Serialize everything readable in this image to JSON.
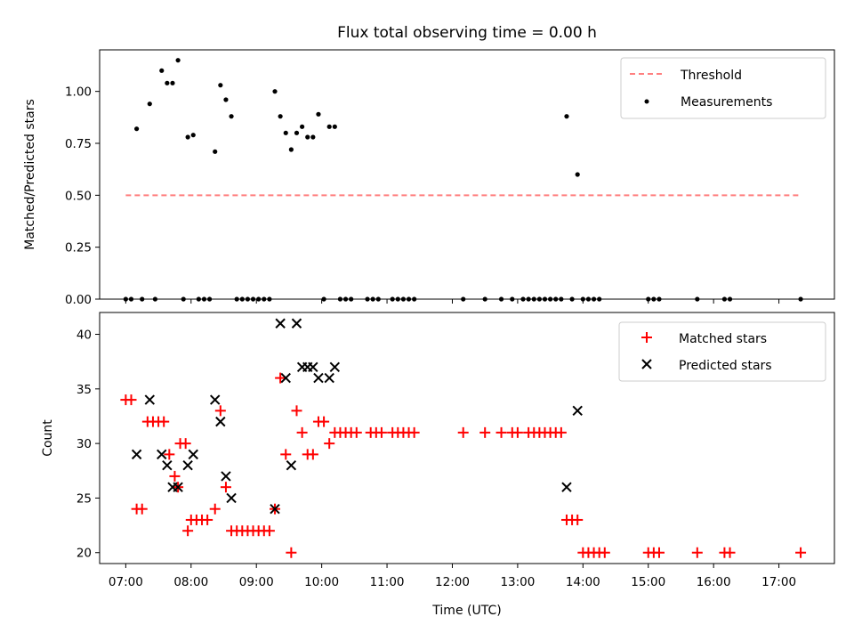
{
  "chart_data": [
    {
      "type": "scatter",
      "title": "Flux total observing time = 0.00 h",
      "xlabel": "",
      "ylabel": "Matched/Predicted stars",
      "ylim": [
        0,
        1.2
      ],
      "yticks": [
        "0.00",
        "0.25",
        "0.50",
        "0.75",
        "1.00"
      ],
      "xlim_hours": [
        6.6,
        17.85
      ],
      "legend": {
        "position": "top-right",
        "entries": [
          "Threshold",
          "Measurements"
        ]
      },
      "threshold": {
        "name": "Threshold",
        "y": 0.5,
        "x_range": [
          "07:00",
          "17:20"
        ],
        "color": "#ff7f7f"
      },
      "series": [
        {
          "name": "Measurements",
          "color": "#000000",
          "points": [
            [
              "07:00",
              0
            ],
            [
              "07:05",
              0
            ],
            [
              "07:10",
              0.82
            ],
            [
              "07:15",
              0
            ],
            [
              "07:22",
              0.94
            ],
            [
              "07:27",
              0
            ],
            [
              "07:33",
              1.1
            ],
            [
              "07:38",
              1.04
            ],
            [
              "07:43",
              1.04
            ],
            [
              "07:48",
              1.15
            ],
            [
              "07:53",
              0
            ],
            [
              "07:57",
              0.78
            ],
            [
              "08:02",
              0.79
            ],
            [
              "08:07",
              0
            ],
            [
              "08:12",
              0
            ],
            [
              "08:17",
              0
            ],
            [
              "08:22",
              0.71
            ],
            [
              "08:27",
              1.03
            ],
            [
              "08:32",
              0.96
            ],
            [
              "08:37",
              0.88
            ],
            [
              "08:42",
              0
            ],
            [
              "08:47",
              0
            ],
            [
              "08:52",
              0
            ],
            [
              "08:57",
              0
            ],
            [
              "09:02",
              0
            ],
            [
              "09:07",
              0
            ],
            [
              "09:12",
              0
            ],
            [
              "09:17",
              1.0
            ],
            [
              "09:22",
              0.88
            ],
            [
              "09:27",
              0.8
            ],
            [
              "09:32",
              0.72
            ],
            [
              "09:37",
              0.8
            ],
            [
              "09:42",
              0.83
            ],
            [
              "09:47",
              0.78
            ],
            [
              "09:52",
              0.78
            ],
            [
              "09:57",
              0.89
            ],
            [
              "10:02",
              0
            ],
            [
              "10:07",
              0.83
            ],
            [
              "10:12",
              0.83
            ],
            [
              "10:17",
              0
            ],
            [
              "10:22",
              0
            ],
            [
              "10:27",
              0
            ],
            [
              "10:42",
              0
            ],
            [
              "10:47",
              0
            ],
            [
              "10:52",
              0
            ],
            [
              "11:05",
              0
            ],
            [
              "11:10",
              0
            ],
            [
              "11:15",
              0
            ],
            [
              "11:20",
              0
            ],
            [
              "11:25",
              0
            ],
            [
              "12:10",
              0
            ],
            [
              "12:30",
              0
            ],
            [
              "12:45",
              0
            ],
            [
              "12:55",
              0
            ],
            [
              "13:05",
              0
            ],
            [
              "13:10",
              0
            ],
            [
              "13:15",
              0
            ],
            [
              "13:20",
              0
            ],
            [
              "13:25",
              0
            ],
            [
              "13:30",
              0
            ],
            [
              "13:35",
              0
            ],
            [
              "13:40",
              0
            ],
            [
              "13:45",
              0.88
            ],
            [
              "13:50",
              0
            ],
            [
              "13:55",
              0.6
            ],
            [
              "14:00",
              0
            ],
            [
              "14:05",
              0
            ],
            [
              "14:10",
              0
            ],
            [
              "14:15",
              0
            ],
            [
              "15:00",
              0
            ],
            [
              "15:05",
              0
            ],
            [
              "15:10",
              0
            ],
            [
              "15:45",
              0
            ],
            [
              "16:10",
              0
            ],
            [
              "16:15",
              0
            ],
            [
              "17:20",
              0
            ]
          ]
        }
      ]
    },
    {
      "type": "scatter",
      "title": "",
      "xlabel": "Time (UTC)",
      "ylabel": "Count",
      "ylim": [
        19,
        42
      ],
      "yticks": [
        "20",
        "25",
        "30",
        "35",
        "40"
      ],
      "xlim_hours": [
        6.6,
        17.85
      ],
      "xticks": [
        "07:00",
        "08:00",
        "09:00",
        "10:00",
        "11:00",
        "12:00",
        "13:00",
        "14:00",
        "15:00",
        "16:00",
        "17:00"
      ],
      "legend": {
        "position": "top-right",
        "entries": [
          "Matched stars",
          "Predicted stars"
        ]
      },
      "series": [
        {
          "name": "Matched stars",
          "marker": "+",
          "color": "#ff0000",
          "points": [
            [
              "07:00",
              34
            ],
            [
              "07:05",
              34
            ],
            [
              "07:10",
              24
            ],
            [
              "07:15",
              24
            ],
            [
              "07:20",
              32
            ],
            [
              "07:25",
              32
            ],
            [
              "07:30",
              32
            ],
            [
              "07:35",
              32
            ],
            [
              "07:40",
              29
            ],
            [
              "07:45",
              27
            ],
            [
              "07:48",
              26
            ],
            [
              "07:50",
              30
            ],
            [
              "07:55",
              30
            ],
            [
              "07:57",
              22
            ],
            [
              "08:00",
              23
            ],
            [
              "08:05",
              23
            ],
            [
              "08:10",
              23
            ],
            [
              "08:15",
              23
            ],
            [
              "08:22",
              24
            ],
            [
              "08:27",
              33
            ],
            [
              "08:32",
              26
            ],
            [
              "08:37",
              22
            ],
            [
              "08:42",
              22
            ],
            [
              "08:47",
              22
            ],
            [
              "08:52",
              22
            ],
            [
              "08:57",
              22
            ],
            [
              "09:02",
              22
            ],
            [
              "09:07",
              22
            ],
            [
              "09:12",
              22
            ],
            [
              "09:17",
              24
            ],
            [
              "09:22",
              36
            ],
            [
              "09:27",
              29
            ],
            [
              "09:32",
              20
            ],
            [
              "09:37",
              33
            ],
            [
              "09:42",
              31
            ],
            [
              "09:47",
              29
            ],
            [
              "09:52",
              29
            ],
            [
              "09:57",
              32
            ],
            [
              "10:02",
              32
            ],
            [
              "10:07",
              30
            ],
            [
              "10:12",
              31
            ],
            [
              "10:17",
              31
            ],
            [
              "10:22",
              31
            ],
            [
              "10:27",
              31
            ],
            [
              "10:32",
              31
            ],
            [
              "10:45",
              31
            ],
            [
              "10:50",
              31
            ],
            [
              "10:55",
              31
            ],
            [
              "11:05",
              31
            ],
            [
              "11:10",
              31
            ],
            [
              "11:15",
              31
            ],
            [
              "11:20",
              31
            ],
            [
              "11:25",
              31
            ],
            [
              "12:10",
              31
            ],
            [
              "12:30",
              31
            ],
            [
              "12:45",
              31
            ],
            [
              "12:55",
              31
            ],
            [
              "13:00",
              31
            ],
            [
              "13:10",
              31
            ],
            [
              "13:15",
              31
            ],
            [
              "13:20",
              31
            ],
            [
              "13:25",
              31
            ],
            [
              "13:30",
              31
            ],
            [
              "13:35",
              31
            ],
            [
              "13:40",
              31
            ],
            [
              "13:45",
              23
            ],
            [
              "13:50",
              23
            ],
            [
              "13:55",
              23
            ],
            [
              "14:00",
              20
            ],
            [
              "14:05",
              20
            ],
            [
              "14:10",
              20
            ],
            [
              "14:15",
              20
            ],
            [
              "14:20",
              20
            ],
            [
              "15:00",
              20
            ],
            [
              "15:05",
              20
            ],
            [
              "15:10",
              20
            ],
            [
              "15:45",
              20
            ],
            [
              "16:10",
              20
            ],
            [
              "16:15",
              20
            ],
            [
              "17:20",
              20
            ]
          ]
        },
        {
          "name": "Predicted stars",
          "marker": "x",
          "color": "#000000",
          "points": [
            [
              "07:10",
              29
            ],
            [
              "07:22",
              34
            ],
            [
              "07:33",
              29
            ],
            [
              "07:38",
              28
            ],
            [
              "07:43",
              26
            ],
            [
              "07:48",
              26
            ],
            [
              "07:57",
              28
            ],
            [
              "08:02",
              29
            ],
            [
              "08:22",
              34
            ],
            [
              "08:27",
              32
            ],
            [
              "08:32",
              27
            ],
            [
              "08:37",
              25
            ],
            [
              "09:17",
              24
            ],
            [
              "09:22",
              41
            ],
            [
              "09:27",
              36
            ],
            [
              "09:32",
              28
            ],
            [
              "09:37",
              41
            ],
            [
              "09:42",
              37
            ],
            [
              "09:47",
              37
            ],
            [
              "09:52",
              37
            ],
            [
              "09:57",
              36
            ],
            [
              "10:07",
              36
            ],
            [
              "10:12",
              37
            ],
            [
              "13:45",
              26
            ],
            [
              "13:55",
              33
            ]
          ]
        }
      ]
    }
  ]
}
